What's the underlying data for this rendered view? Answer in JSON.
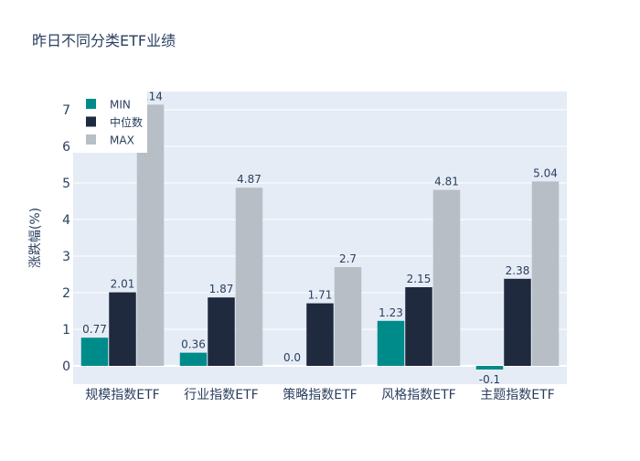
{
  "chart_data": {
    "type": "bar",
    "title": "昨日不同分类ETF业绩",
    "xlabel": "",
    "ylabel": "涨跌幅(%)",
    "ylim": [
      -0.5,
      7.5
    ],
    "yticks": [
      0,
      1,
      2,
      3,
      4,
      5,
      6,
      7
    ],
    "grid": true,
    "legend_position": "top-left",
    "categories": [
      "规模指数ETF",
      "行业指数ETF",
      "策略指数ETF",
      "风格指数ETF",
      "主题指数ETF"
    ],
    "series": [
      {
        "name": "MIN",
        "color": "#008B8B",
        "values": [
          0.77,
          0.36,
          0.0,
          1.23,
          -0.1
        ],
        "labels": [
          "0.77",
          "0.36",
          "0.0",
          "1.23",
          "-0.1"
        ]
      },
      {
        "name": "中位数",
        "color": "#1F2A3F",
        "values": [
          2.01,
          1.87,
          1.71,
          2.15,
          2.38
        ],
        "labels": [
          "2.01",
          "1.87",
          "1.71",
          "2.15",
          "2.38"
        ]
      },
      {
        "name": "MAX",
        "color": "#B8BEC6",
        "values": [
          7.14,
          4.87,
          2.7,
          4.81,
          5.04
        ],
        "labels": [
          "7.14",
          "4.87",
          "2.7",
          "4.81",
          "5.04"
        ]
      }
    ]
  }
}
